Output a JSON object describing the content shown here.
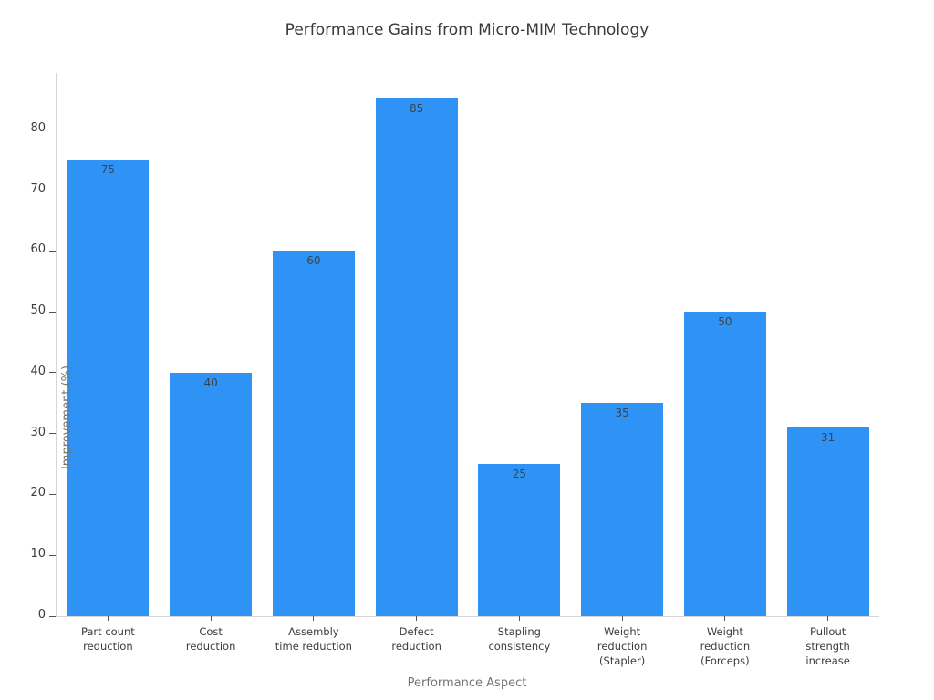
{
  "chart_data": {
    "type": "bar",
    "title": "Performance Gains from Micro-MIM Technology",
    "xlabel": "Performance Aspect",
    "ylabel": "Improvement (%)",
    "categories": [
      "Part count\nreduction",
      "Cost\nreduction",
      "Assembly\ntime reduction",
      "Defect\nreduction",
      "Stapling\nconsistency",
      "Weight\nreduction\n(Stapler)",
      "Weight\nreduction\n(Forceps)",
      "Pullout\nstrength\nincrease"
    ],
    "values": [
      75,
      40,
      60,
      85,
      25,
      35,
      50,
      31
    ],
    "value_labels": [
      "75",
      "40",
      "60",
      "85",
      "25",
      "35",
      "50",
      "31"
    ],
    "yticks": [
      0,
      10,
      20,
      30,
      40,
      50,
      60,
      70,
      80
    ],
    "ylim": [
      0,
      89.25
    ],
    "bar_width_frac": 0.8,
    "grid": false,
    "legend": null,
    "show_value_labels": true,
    "colors": {
      "bar": "#2E93F5",
      "value_label": "#3D4349",
      "tick_label": "#3B3B3B",
      "axis_title": "#757575",
      "title": "#3A3A3A",
      "spine": "#D6D6D6",
      "tick_mark": "#555555",
      "background": "#FFFFFF"
    }
  }
}
